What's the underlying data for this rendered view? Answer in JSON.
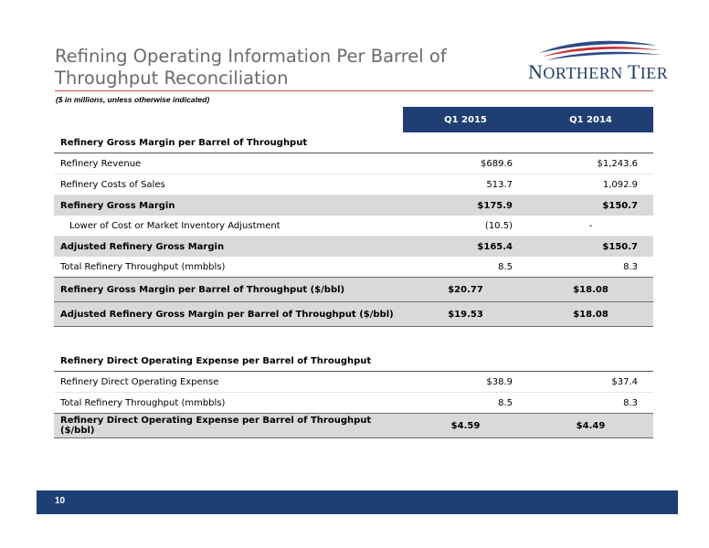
{
  "title": "Refining Operating Information Per Barrel of Throughput Reconciliation",
  "subtitle": "($ in millions, unless otherwise indicated)",
  "logo": {
    "text_first": "N",
    "text_rest": "ORTHERN ",
    "text_first2": "T",
    "text_rest2": "IER"
  },
  "table": {
    "col1": "Q1 2015",
    "col2": "Q1 2014",
    "section1_title": "Refinery Gross Margin per Barrel of Throughput",
    "rows1": [
      {
        "label": "Refinery Revenue",
        "v1": "$689.6",
        "v2": "$1,243.6"
      },
      {
        "label": "Refinery Costs of Sales",
        "v1": "513.7",
        "v2": "1,092.9"
      },
      {
        "label": "Refinery Gross Margin",
        "v1": "$175.9",
        "v2": "$150.7"
      },
      {
        "label": "Lower of Cost or Market Inventory Adjustment",
        "v1": "(10.5)",
        "v2": "-"
      },
      {
        "label": "Adjusted Refinery Gross Margin",
        "v1": "$165.4",
        "v2": "$150.7"
      },
      {
        "label": "Total Refinery Throughput (mmbbls)",
        "v1": "8.5",
        "v2": "8.3"
      }
    ],
    "boxed1": [
      {
        "label": "Refinery Gross Margin per Barrel of Throughput ($/bbl)",
        "v1": "$20.77",
        "v2": "$18.08"
      },
      {
        "label": "Adjusted Refinery Gross Margin per Barrel of Throughput ($/bbl)",
        "v1": "$19.53",
        "v2": "$18.08"
      }
    ],
    "section2_title": "Refinery Direct Operating Expense per Barrel of Throughput",
    "rows2": [
      {
        "label": "Refinery Direct Operating Expense",
        "v1": "$38.9",
        "v2": "$37.4"
      },
      {
        "label": "Total Refinery Throughput (mmbbls)",
        "v1": "8.5",
        "v2": "8.3"
      }
    ],
    "boxed2": [
      {
        "label": "Refinery Direct Operating Expense per Barrel of Throughput ($/bbl)",
        "v1": "$4.59",
        "v2": "$4.49"
      }
    ]
  },
  "footer": {
    "page": "10"
  },
  "colors": {
    "navy": "#1f3f74",
    "rule": "#c0504d",
    "shade": "#d9d9d9"
  }
}
